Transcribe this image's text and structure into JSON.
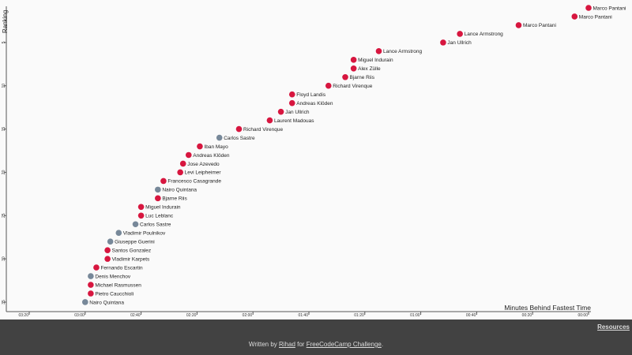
{
  "chart_data": {
    "type": "scatter",
    "title": "",
    "xlabel": "Minutes Behind Fastest Time",
    "ylabel": "Ranking",
    "x_units": "seconds behind fastest time",
    "xlim": [
      200,
      0
    ],
    "ylim": [
      1,
      35
    ],
    "x_reversed": true,
    "x_ticks": [
      {
        "value": 200,
        "label": "03:20"
      },
      {
        "value": 180,
        "label": "03:00"
      },
      {
        "value": 160,
        "label": "02:40"
      },
      {
        "value": 140,
        "label": "02:20"
      },
      {
        "value": 120,
        "label": "02:00"
      },
      {
        "value": 100,
        "label": "01:40"
      },
      {
        "value": 80,
        "label": "01:20"
      },
      {
        "value": 60,
        "label": "01:00"
      },
      {
        "value": 40,
        "label": "00:40"
      },
      {
        "value": 20,
        "label": "00:20"
      },
      {
        "value": 0,
        "label": "00:00"
      }
    ],
    "y_ticks": [
      {
        "value": 5,
        "label": "5"
      },
      {
        "value": 10,
        "label": "10"
      },
      {
        "value": 15,
        "label": "15"
      },
      {
        "value": 20,
        "label": "20"
      },
      {
        "value": 25,
        "label": "25"
      },
      {
        "value": 30,
        "label": "30"
      },
      {
        "value": 35,
        "label": "35"
      }
    ],
    "grid": false,
    "colors": {
      "doping": "#d7163f",
      "no_doping": "#778899"
    },
    "points": [
      {
        "rank": 1,
        "x": 0,
        "name": "Marco Pantani",
        "doping": true
      },
      {
        "rank": 2,
        "x": 5,
        "name": "Marco Pantani",
        "doping": true
      },
      {
        "rank": 3,
        "x": 25,
        "name": "Marco Pantani",
        "doping": true
      },
      {
        "rank": 4,
        "x": 46,
        "name": "Lance Armstrong",
        "doping": true
      },
      {
        "rank": 5,
        "x": 52,
        "name": "Jan Ullrich",
        "doping": true
      },
      {
        "rank": 6,
        "x": 75,
        "name": "Lance Armstrong",
        "doping": true
      },
      {
        "rank": 7,
        "x": 84,
        "name": "Miguel Indurain",
        "doping": true
      },
      {
        "rank": 8,
        "x": 84,
        "name": "Alex Zülle",
        "doping": true
      },
      {
        "rank": 9,
        "x": 87,
        "name": "Bjarne Riis",
        "doping": true
      },
      {
        "rank": 10,
        "x": 93,
        "name": "Richard Virenque",
        "doping": true
      },
      {
        "rank": 11,
        "x": 106,
        "name": "Floyd Landis",
        "doping": true
      },
      {
        "rank": 12,
        "x": 106,
        "name": "Andreas Klöden",
        "doping": true
      },
      {
        "rank": 13,
        "x": 110,
        "name": "Jan Ullrich",
        "doping": true
      },
      {
        "rank": 14,
        "x": 114,
        "name": "Laurent Madouas",
        "doping": true
      },
      {
        "rank": 15,
        "x": 125,
        "name": "Richard Virenque",
        "doping": true
      },
      {
        "rank": 16,
        "x": 132,
        "name": "Carlos Sastre",
        "doping": false
      },
      {
        "rank": 17,
        "x": 139,
        "name": "Iban Mayo",
        "doping": true
      },
      {
        "rank": 18,
        "x": 143,
        "name": "Andreas Klöden",
        "doping": true
      },
      {
        "rank": 19,
        "x": 145,
        "name": "Jose Azevedo",
        "doping": true
      },
      {
        "rank": 20,
        "x": 146,
        "name": "Levi Leipheimer",
        "doping": true
      },
      {
        "rank": 21,
        "x": 152,
        "name": "Francesco Casagrande",
        "doping": true
      },
      {
        "rank": 22,
        "x": 154,
        "name": "Nairo Quintana",
        "doping": false
      },
      {
        "rank": 23,
        "x": 154,
        "name": "Bjarne Riis",
        "doping": true
      },
      {
        "rank": 24,
        "x": 160,
        "name": "Miguel Indurain",
        "doping": true
      },
      {
        "rank": 25,
        "x": 160,
        "name": "Luc Leblanc",
        "doping": true
      },
      {
        "rank": 26,
        "x": 162,
        "name": "Carlos Sastre",
        "doping": false
      },
      {
        "rank": 27,
        "x": 168,
        "name": "Vladimir Poulnikov",
        "doping": false
      },
      {
        "rank": 28,
        "x": 171,
        "name": "Giuseppe Guerini",
        "doping": false
      },
      {
        "rank": 29,
        "x": 172,
        "name": "Santos Gonzalez",
        "doping": true
      },
      {
        "rank": 30,
        "x": 172,
        "name": "Vladimir Karpets",
        "doping": true
      },
      {
        "rank": 31,
        "x": 176,
        "name": "Fernando Escartin",
        "doping": true
      },
      {
        "rank": 32,
        "x": 178,
        "name": "Denis Menchov",
        "doping": false
      },
      {
        "rank": 33,
        "x": 178,
        "name": "Michael Rasmussen",
        "doping": true
      },
      {
        "rank": 34,
        "x": 178,
        "name": "Pietro Caucchioli",
        "doping": true
      },
      {
        "rank": 35,
        "x": 180,
        "name": "Nairo Quintana",
        "doping": false
      }
    ]
  },
  "footer": {
    "resources_label": "Resources",
    "written_by": "Written by ",
    "author": "Rihad",
    "for_text": " for ",
    "challenge": "FreeCodeCamp Challenge",
    "end": "."
  }
}
